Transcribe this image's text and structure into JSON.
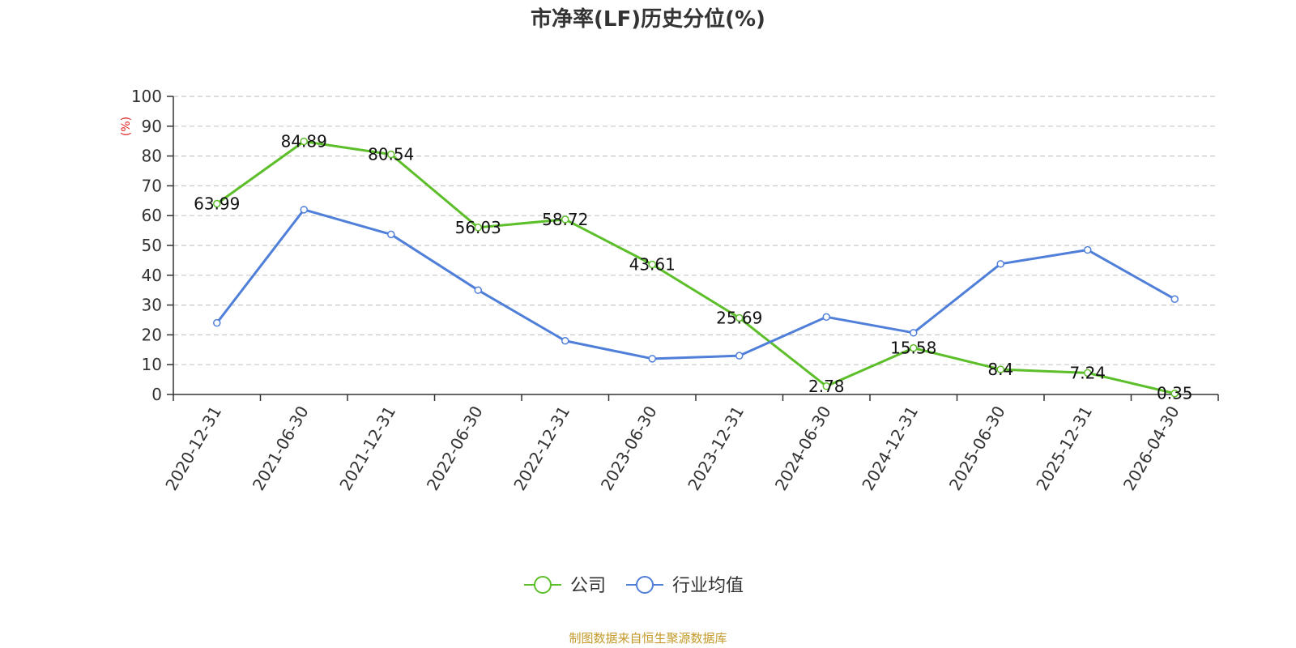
{
  "chart_data": {
    "type": "line",
    "title": "市净率(LF)历史分位(%)",
    "ylabel": "(%)",
    "ylim": [
      0,
      100
    ],
    "yticks": [
      0,
      10,
      20,
      30,
      40,
      50,
      60,
      70,
      80,
      90,
      100
    ],
    "grid": true,
    "legend_position": "bottom-center",
    "categories": [
      "2020-12-31",
      "2021-06-30",
      "2021-12-31",
      "2022-06-30",
      "2022-12-31",
      "2023-06-30",
      "2023-12-31",
      "2024-06-30",
      "2024-12-31",
      "2025-06-30",
      "2025-12-31",
      "2026-04-30"
    ],
    "series": [
      {
        "name": "公司",
        "color": "#5cbf2a",
        "values": [
          63.99,
          84.89,
          80.54,
          56.03,
          58.72,
          43.61,
          25.69,
          2.78,
          15.58,
          8.4,
          7.24,
          0.35
        ],
        "labels": [
          "63.99",
          "84.89",
          "80.54",
          "56.03",
          "58.72",
          "43.61",
          "25.69",
          "2.78",
          "15.58",
          "8.4",
          "7.24",
          "0.35"
        ]
      },
      {
        "name": "行业均值",
        "color": "#4f7fd9",
        "values": [
          24,
          62,
          53.7,
          35,
          18,
          12,
          13,
          26,
          20.7,
          43.8,
          48.5,
          32
        ]
      }
    ],
    "source": "制图数据来自恒生聚源数据库",
    "ylabel_color": "#e02020",
    "source_color": "#c39a2a"
  }
}
